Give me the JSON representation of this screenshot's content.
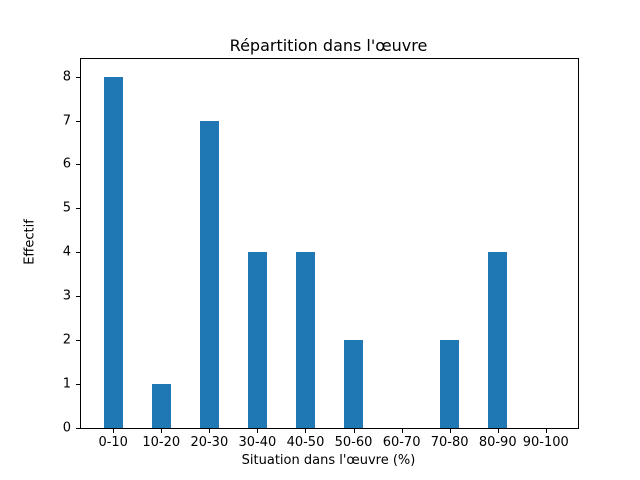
{
  "chart_data": {
    "type": "bar",
    "title": "Répartition dans l'œuvre",
    "xlabel": "Situation dans l'œuvre (%)",
    "ylabel": "Effectif",
    "categories": [
      "0-10",
      "10-20",
      "20-30",
      "30-40",
      "40-50",
      "50-60",
      "60-70",
      "70-80",
      "80-90",
      "90-100"
    ],
    "values": [
      8,
      1,
      7,
      4,
      4,
      2,
      0,
      2,
      4,
      0
    ],
    "yticks": [
      "0",
      "1",
      "2",
      "3",
      "4",
      "5",
      "6",
      "7",
      "8"
    ],
    "ylim": [
      0,
      8.4
    ],
    "bar_width_ratio": 0.4,
    "x_margin": 0.05,
    "bar_color": "#1f77b4",
    "grid": false,
    "legend": "none"
  }
}
